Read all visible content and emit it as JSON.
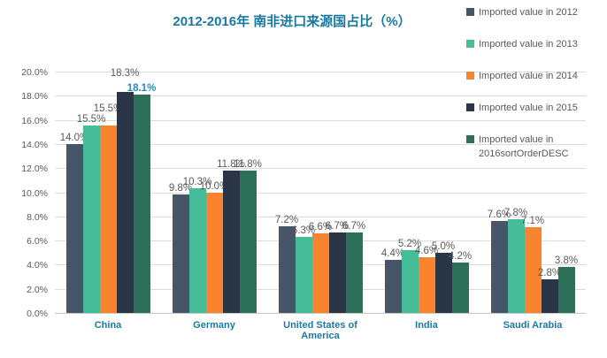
{
  "chart_data": {
    "type": "bar",
    "title": "2012-2016年 南非进口来源国占比（%）",
    "title_color": "#1779A1",
    "categories": [
      "China",
      "Germany",
      "United States of America",
      "India",
      "Saudi Arabia"
    ],
    "series": [
      {
        "name": "Imported value in 2012",
        "color": "#475569",
        "values": [
          14.0,
          9.8,
          7.2,
          4.4,
          7.6
        ]
      },
      {
        "name": "Imported value in 2013",
        "color": "#46BC98",
        "values": [
          15.5,
          10.3,
          6.3,
          5.2,
          7.8
        ]
      },
      {
        "name": "Imported value in 2014",
        "color": "#F8842F",
        "values": [
          15.5,
          10.0,
          6.6,
          4.6,
          7.1
        ]
      },
      {
        "name": "Imported value in 2015",
        "color": "#2A3645",
        "values": [
          18.3,
          11.8,
          6.7,
          5.0,
          2.8
        ]
      },
      {
        "name": "Imported value in 2016sortOrderDESC",
        "color": "#2C7157",
        "values": [
          18.1,
          11.8,
          6.7,
          4.2,
          3.8
        ]
      }
    ],
    "ylim": [
      0,
      20
    ],
    "ytick_step": 2,
    "ytick_labels": [
      "0.0%",
      "2.0%",
      "4.0%",
      "6.0%",
      "8.0%",
      "10.0%",
      "12.0%",
      "14.0%",
      "16.0%",
      "18.0%",
      "20.0%"
    ],
    "data_label_suffix": "%",
    "xlabel": "",
    "ylabel": "",
    "layout_hints": {
      "grid": true,
      "legend_position": "top-right",
      "axis_label_color": "#595959",
      "category_label_color": "#1B7AA3",
      "gridline_color": "#DCDCDC",
      "raised_labels": [
        {
          "category_index": 0,
          "series_index": 2,
          "dy": -12
        },
        {
          "category_index": 0,
          "series_index": 3,
          "dy": -14
        }
      ],
      "highlight_label": {
        "category_index": 0,
        "series_index": 4,
        "color": "#1D8FC9",
        "bold": true
      }
    }
  }
}
